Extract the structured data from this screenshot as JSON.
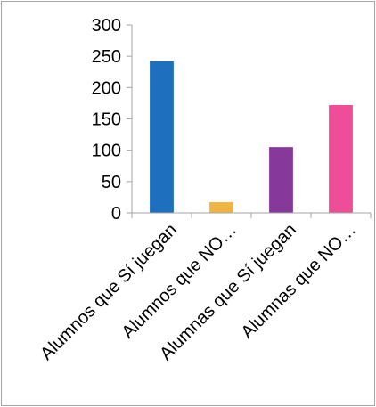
{
  "chart_data": {
    "type": "bar",
    "categories": [
      "Alumnos que Sí juegan",
      "Alumnos que NO…",
      "Alumnas que Sí juegan",
      "Alumnas que NO…"
    ],
    "values": [
      242,
      17,
      105,
      172
    ],
    "colors": [
      "#1F6FBF",
      "#F0B443",
      "#86399A",
      "#EE4E97"
    ],
    "ylim": [
      0,
      300
    ],
    "yticks": [
      "0",
      "50",
      "100",
      "150",
      "200",
      "250",
      "300"
    ],
    "title": "",
    "xlabel": "",
    "ylabel": "",
    "grid": false,
    "legend": "none"
  }
}
